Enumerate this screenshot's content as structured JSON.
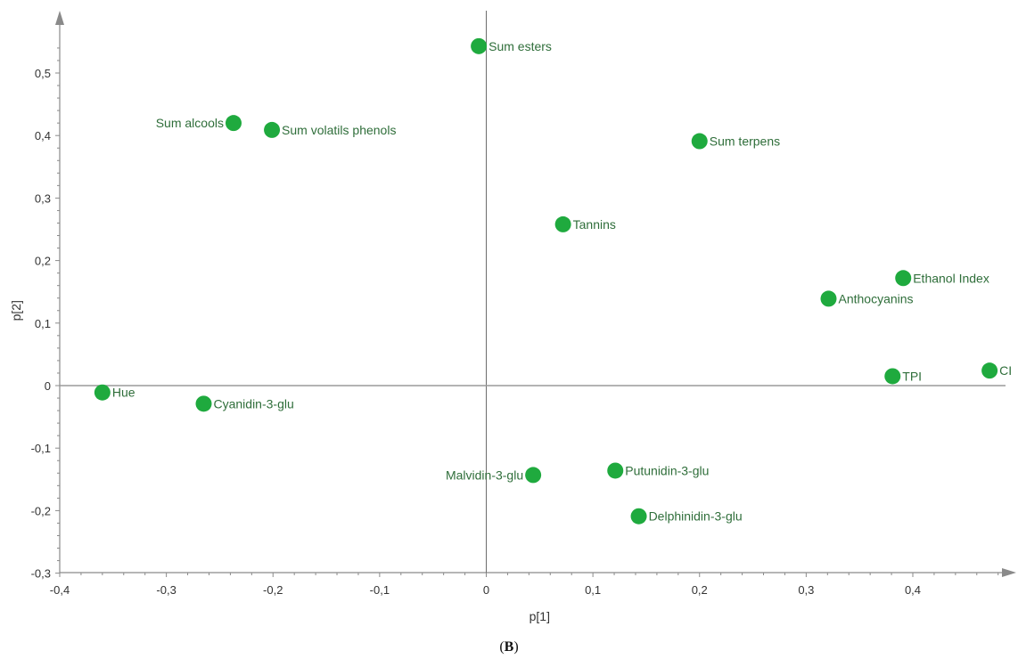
{
  "chart_data": {
    "type": "scatter",
    "xlabel": "p[1]",
    "ylabel": "p[2]",
    "xlim": [
      -0.4,
      0.5
    ],
    "ylim": [
      -0.3,
      0.58
    ],
    "x_ticks": [
      -0.4,
      -0.3,
      -0.2,
      -0.1,
      0,
      0.1,
      0.2,
      0.3,
      0.4
    ],
    "y_ticks": [
      -0.3,
      -0.2,
      -0.1,
      0,
      0.1,
      0.2,
      0.3,
      0.4,
      0.5
    ],
    "x_tick_labels": [
      "-0,4",
      "-0,3",
      "-0,2",
      "-0,1",
      "0",
      "0,1",
      "0,2",
      "0,3",
      "0,4"
    ],
    "y_tick_labels": [
      "-0,3",
      "-0,2",
      "-0,1",
      "0",
      "0,1",
      "0,2",
      "0,3",
      "0,4",
      "0,5"
    ],
    "grid": false,
    "point_color": "#1faa3e",
    "label_color": "#2f6e3a",
    "points": [
      {
        "label": "Sum esters",
        "x": -0.007,
        "y": 0.543,
        "label_side": "right"
      },
      {
        "label": "Sum alcools",
        "x": -0.237,
        "y": 0.42,
        "label_side": "left"
      },
      {
        "label": "Sum volatils phenols",
        "x": -0.201,
        "y": 0.409,
        "label_side": "right"
      },
      {
        "label": "Sum terpens",
        "x": 0.2,
        "y": 0.391,
        "label_side": "right"
      },
      {
        "label": "Tannins",
        "x": 0.072,
        "y": 0.258,
        "label_side": "right"
      },
      {
        "label": "Ethanol Index",
        "x": 0.391,
        "y": 0.172,
        "label_side": "right"
      },
      {
        "label": "Anthocyanins",
        "x": 0.321,
        "y": 0.139,
        "label_side": "right"
      },
      {
        "label": "TPI",
        "x": 0.381,
        "y": 0.015,
        "label_side": "right"
      },
      {
        "label": "CI",
        "x": 0.472,
        "y": 0.024,
        "label_side": "right"
      },
      {
        "label": "Hue",
        "x": -0.36,
        "y": -0.011,
        "label_side": "right"
      },
      {
        "label": "Cyanidin-3-glu",
        "x": -0.265,
        "y": -0.029,
        "label_side": "right"
      },
      {
        "label": "Malvidin-3-glu",
        "x": 0.044,
        "y": -0.143,
        "label_side": "left"
      },
      {
        "label": "Putunidin-3-glu",
        "x": 0.121,
        "y": -0.136,
        "label_side": "right"
      },
      {
        "label": "Delphinidin-3-glu",
        "x": 0.143,
        "y": -0.209,
        "label_side": "right"
      }
    ]
  },
  "caption": {
    "open": "(",
    "letter": "B",
    "close": ")"
  }
}
